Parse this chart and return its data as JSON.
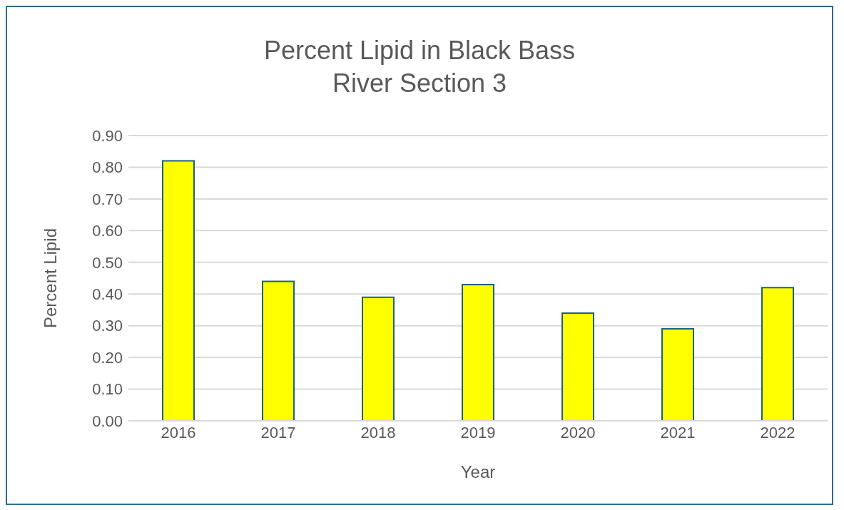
{
  "chart_data": {
    "type": "bar",
    "title": "Percent Lipid in Black Bass\nRiver Section 3",
    "xlabel": "Year",
    "ylabel": "Percent Lipid",
    "categories": [
      "2016",
      "2017",
      "2018",
      "2019",
      "2020",
      "2021",
      "2022"
    ],
    "values": [
      0.82,
      0.44,
      0.39,
      0.43,
      0.34,
      0.29,
      0.42
    ],
    "color": "#ffff00",
    "ylim": [
      0,
      0.9
    ],
    "yticks": [
      {
        "value": 0,
        "label": "0.00"
      },
      {
        "value": 0.1,
        "label": "0.10"
      },
      {
        "value": 0.2,
        "label": "0.20"
      },
      {
        "value": 0.3,
        "label": "0.30"
      },
      {
        "value": 0.4,
        "label": "0.40"
      },
      {
        "value": 0.5,
        "label": "0.50"
      },
      {
        "value": 0.6,
        "label": "0.60"
      },
      {
        "value": 0.7,
        "label": "0.70"
      },
      {
        "value": 0.8,
        "label": "0.80"
      },
      {
        "value": 0.9,
        "label": "0.90"
      }
    ],
    "grid": "y",
    "legend": false
  }
}
